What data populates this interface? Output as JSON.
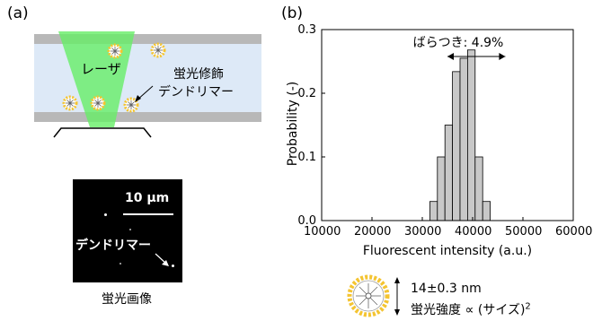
{
  "panels": {
    "a_label": "(a)",
    "b_label": "(b)"
  },
  "schematic": {
    "laser_label": "レーザ",
    "dendrimer_label_line1": "蛍光修飾",
    "dendrimer_label_line2": "デンドリマー"
  },
  "micrograph": {
    "scale_label": "10 μm",
    "dendrimer_label": "デンドリマー",
    "caption": "蛍光画像"
  },
  "chart_data": {
    "type": "bar",
    "title": "",
    "xlabel": "Fluorescent intensity  (a.u.)",
    "ylabel": "Probability (-)",
    "xlim": [
      10000,
      60000
    ],
    "ylim": [
      0,
      0.3
    ],
    "x_ticks": [
      "10000",
      "20000",
      "30000",
      "40000",
      "50000",
      "60000"
    ],
    "y_ticks": [
      "0.0",
      "0.1",
      "0.2",
      "0.3"
    ],
    "bin_width": 1500,
    "bins": [
      {
        "start": 31500,
        "value": 0.03
      },
      {
        "start": 33000,
        "value": 0.1
      },
      {
        "start": 34500,
        "value": 0.15
      },
      {
        "start": 36000,
        "value": 0.234
      },
      {
        "start": 37500,
        "value": 0.255
      },
      {
        "start": 39000,
        "value": 0.268
      },
      {
        "start": 40500,
        "value": 0.1
      },
      {
        "start": 42000,
        "value": 0.03
      }
    ],
    "annotation": "ばらつき: 4.9%",
    "annotation_span": [
      35000,
      46500
    ],
    "grid": false,
    "bar_color": "#c8c8c8"
  },
  "dendrimer_info": {
    "size_label": "14±0.3 nm",
    "proportional_label": "蛍光強度 ∝ (サイズ)",
    "exponent": "2"
  },
  "colors": {
    "laser": "#66ee66",
    "cell_fill": "#dde9f7",
    "plate": "#b8b8b8",
    "dye": "#f4c431"
  }
}
